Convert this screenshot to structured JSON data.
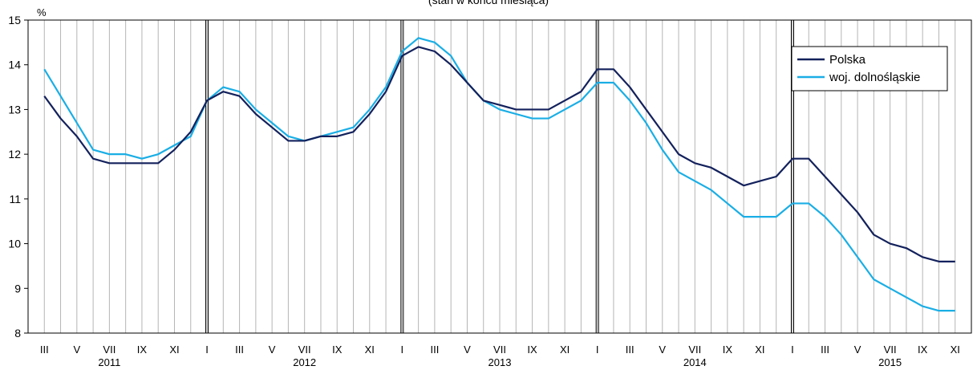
{
  "chart_data": {
    "type": "line",
    "subtitle": "(stan w końcu miesiąca)",
    "ylabel": "%",
    "ylim": [
      8,
      15
    ],
    "yticks": [
      "8",
      "9",
      "10",
      "11",
      "12",
      "13",
      "14",
      "15"
    ],
    "years": [
      "2011",
      "2012",
      "2013",
      "2014",
      "2015"
    ],
    "month_ticks": [
      "III",
      "V",
      "VII",
      "IX",
      "XI",
      "I",
      "III",
      "V",
      "VII",
      "IX",
      "XI",
      "I",
      "III",
      "V",
      "VII",
      "IX",
      "XI",
      "I",
      "III",
      "V",
      "VII",
      "IX",
      "XI",
      "I",
      "III",
      "V",
      "VII",
      "IX",
      "XI"
    ],
    "x_start": "2011-03",
    "x_end": "2015-11",
    "grid": true,
    "legend_position": "top-right",
    "series": [
      {
        "name": "Polska",
        "color": "#13215c",
        "values": [
          13.3,
          12.8,
          12.4,
          11.9,
          11.8,
          11.8,
          11.8,
          11.8,
          12.1,
          12.5,
          13.2,
          13.4,
          13.3,
          12.9,
          12.6,
          12.3,
          12.3,
          12.4,
          12.4,
          12.5,
          12.9,
          13.4,
          14.2,
          14.4,
          14.3,
          14.0,
          13.6,
          13.2,
          13.1,
          13.0,
          13.0,
          13.0,
          13.2,
          13.4,
          13.9,
          13.9,
          13.5,
          13.0,
          12.5,
          12.0,
          11.8,
          11.7,
          11.5,
          11.3,
          11.4,
          11.5,
          11.9,
          11.9,
          11.5,
          11.1,
          10.7,
          10.2,
          10.0,
          9.9,
          9.7,
          9.6,
          9.6
        ]
      },
      {
        "name": "woj. dolnośląskie",
        "color": "#1aaee5",
        "values": [
          13.9,
          13.3,
          12.7,
          12.1,
          12.0,
          12.0,
          11.9,
          12.0,
          12.2,
          12.4,
          13.2,
          13.5,
          13.4,
          13.0,
          12.7,
          12.4,
          12.3,
          12.4,
          12.5,
          12.6,
          13.0,
          13.5,
          14.3,
          14.6,
          14.5,
          14.2,
          13.6,
          13.2,
          13.0,
          12.9,
          12.8,
          12.8,
          13.0,
          13.2,
          13.6,
          13.6,
          13.2,
          12.7,
          12.1,
          11.6,
          11.4,
          11.2,
          10.9,
          10.6,
          10.6,
          10.6,
          10.9,
          10.9,
          10.6,
          10.2,
          9.7,
          9.2,
          9.0,
          8.8,
          8.6,
          8.5,
          8.5
        ]
      }
    ]
  }
}
